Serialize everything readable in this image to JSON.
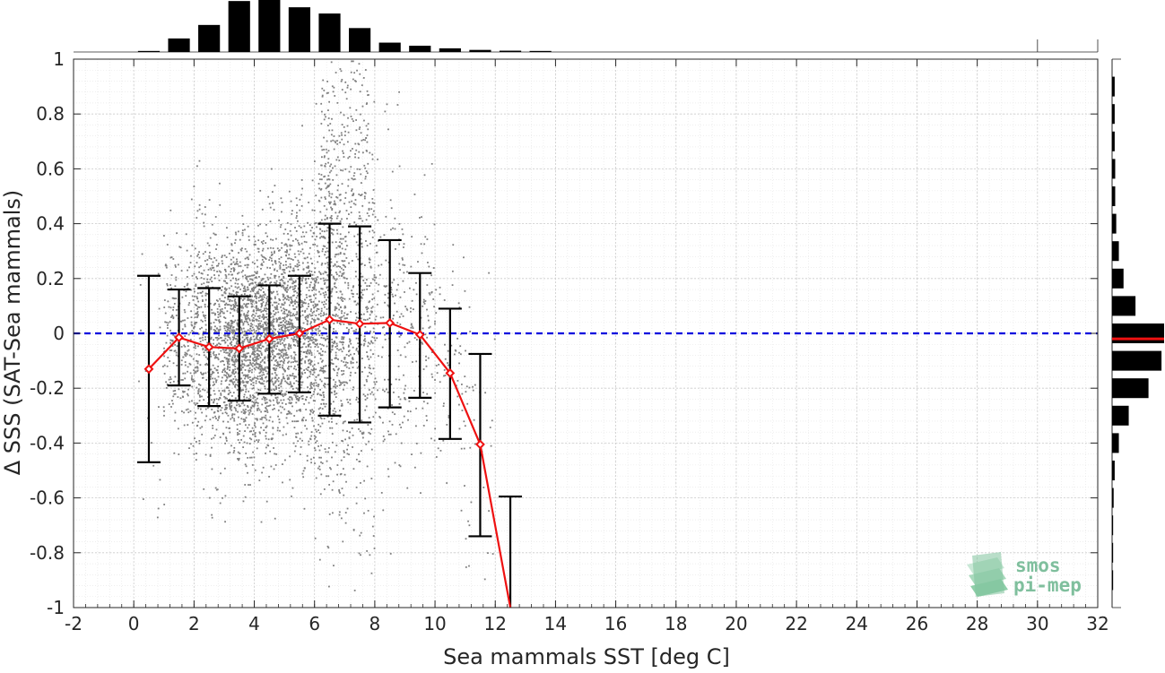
{
  "chart_data": {
    "type": "scatter",
    "title": "",
    "xlabel": "Sea mammals SST [deg C]",
    "ylabel": "Δ SSS (SAT-Sea mammals)",
    "xlim": [
      -2,
      32
    ],
    "ylim": [
      -1,
      1
    ],
    "xticks": [
      "-2",
      "0",
      "2",
      "4",
      "6",
      "8",
      "10",
      "12",
      "14",
      "16",
      "18",
      "20",
      "22",
      "24",
      "26",
      "28",
      "30",
      "32"
    ],
    "yticks": [
      "-1",
      "-0.8",
      "-0.6",
      "-0.4",
      "-0.2",
      "0",
      "0.2",
      "0.4",
      "0.6",
      "0.8",
      "1"
    ],
    "grid": true,
    "zero_line": {
      "y": 0,
      "color": "#0000dd",
      "style": "dashed"
    },
    "scatter_color": "#808080",
    "binned_mean": {
      "color": "#ee1111",
      "x": [
        0.5,
        1.5,
        2.5,
        3.5,
        4.5,
        5.5,
        6.5,
        7.5,
        8.5,
        9.5,
        10.5,
        11.5,
        12.5
      ],
      "mean": [
        -0.13,
        -0.015,
        -0.05,
        -0.055,
        -0.02,
        0.0,
        0.05,
        0.035,
        0.038,
        -0.005,
        -0.145,
        -0.405,
        -1.0
      ],
      "err_low": [
        -0.47,
        -0.19,
        -0.265,
        -0.245,
        -0.22,
        -0.215,
        -0.3,
        -0.325,
        -0.27,
        -0.235,
        -0.385,
        -0.74,
        -1.0
      ],
      "err_high": [
        0.21,
        0.16,
        0.165,
        0.135,
        0.175,
        0.21,
        0.4,
        0.39,
        0.34,
        0.22,
        0.09,
        -0.075,
        -0.595
      ]
    },
    "top_histogram": {
      "bin_centers": [
        0.5,
        1.5,
        2.5,
        3.5,
        4.5,
        5.5,
        6.5,
        7.5,
        8.5,
        9.5,
        10.5,
        11.5,
        12.5,
        13.5
      ],
      "relative_counts": [
        0.02,
        0.26,
        0.52,
        0.98,
        1.0,
        0.86,
        0.74,
        0.46,
        0.18,
        0.12,
        0.07,
        0.04,
        0.025,
        0.02
      ]
    },
    "right_histogram": {
      "bin_centers": [
        0.9,
        0.8,
        0.7,
        0.6,
        0.5,
        0.4,
        0.3,
        0.2,
        0.1,
        0.0,
        -0.1,
        -0.2,
        -0.3,
        -0.4,
        -0.5,
        -0.6,
        -0.7,
        -0.8,
        -0.9
      ],
      "relative_counts": [
        0.05,
        0.05,
        0.05,
        0.06,
        0.06,
        0.08,
        0.13,
        0.22,
        0.45,
        1.0,
        0.95,
        0.7,
        0.32,
        0.13,
        0.05,
        0.03,
        0.02,
        0.02,
        0.02
      ],
      "median_marker": {
        "y": -0.02,
        "color": "#ee1111"
      }
    }
  },
  "logo": {
    "line1": "smos",
    "line2": "pi-mep"
  }
}
